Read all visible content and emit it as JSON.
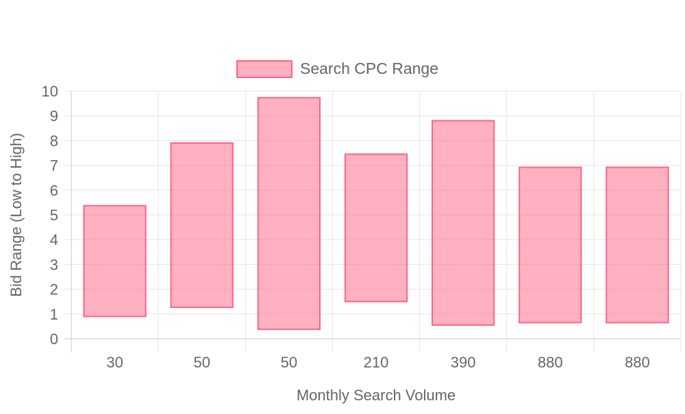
{
  "chart_data": {
    "type": "bar",
    "subtype": "floating-range",
    "categories": [
      "30",
      "50",
      "50",
      "210",
      "390",
      "880",
      "880"
    ],
    "series": [
      {
        "name": "Search CPC Range",
        "ranges": [
          [
            0.9,
            5.37
          ],
          [
            1.27,
            7.9
          ],
          [
            0.38,
            9.73
          ],
          [
            1.5,
            7.45
          ],
          [
            0.55,
            8.8
          ],
          [
            0.65,
            6.92
          ],
          [
            0.65,
            6.92
          ]
        ]
      }
    ],
    "title": "",
    "xlabel": "Monthly Search Volume",
    "ylabel": "Bid Range (Low to High)",
    "ylim": [
      0,
      10
    ],
    "yticks": [
      "0",
      "1",
      "2",
      "3",
      "4",
      "5",
      "6",
      "7",
      "8",
      "9",
      "10"
    ],
    "grid": true,
    "legend_position": "top",
    "colors": {
      "bar_fill": "rgba(255, 99, 132, 0.5)",
      "bar_stroke": "#ff6384",
      "grid": "#e5e5e5",
      "axis": "#c8c8c8",
      "text": "#666666"
    }
  }
}
